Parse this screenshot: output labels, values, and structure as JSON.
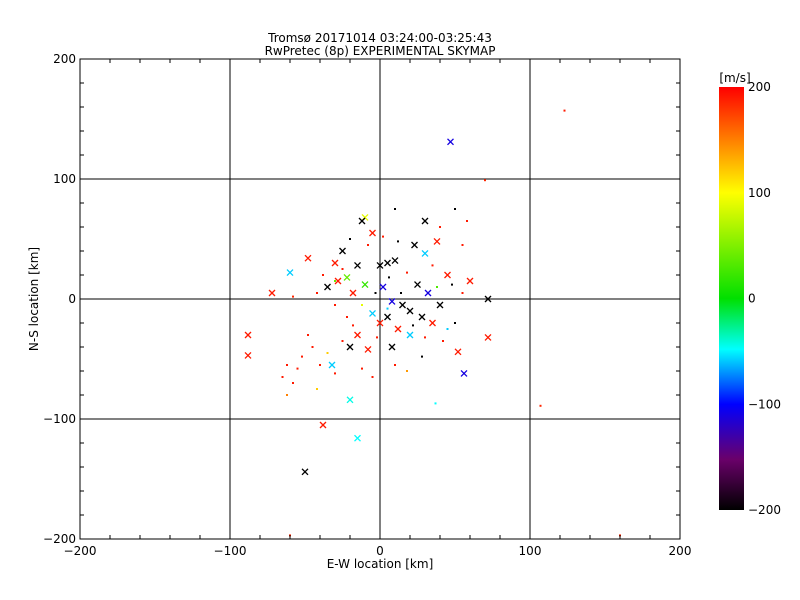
{
  "chart_data": {
    "type": "scatter",
    "title": "Tromsø 20171014 03:24:00-03:25:43",
    "subtitle": "RwPretec (8p) EXPERIMENTAL SKYMAP",
    "xlabel": "E-W location [km]",
    "ylabel": "N-S location [km]",
    "xlim": [
      -200,
      200
    ],
    "ylim": [
      -200,
      200
    ],
    "xticks": [
      "−200",
      "−100",
      "0",
      "100",
      "200"
    ],
    "yticks": [
      "−200",
      "−100",
      "0",
      "100",
      "200"
    ],
    "grid": true,
    "colorbar": {
      "label": "[m/s]",
      "range": [
        -200,
        200
      ],
      "ticks": [
        "200",
        "100",
        "0",
        "−100",
        "−200"
      ]
    },
    "points": [
      {
        "x": 123,
        "y": 157,
        "v": 190,
        "m": "dot"
      },
      {
        "x": 47,
        "y": 131,
        "v": -110,
        "m": "x"
      },
      {
        "x": 70,
        "y": 99,
        "v": 185,
        "m": "dot"
      },
      {
        "x": -88,
        "y": -30,
        "v": 190,
        "m": "x"
      },
      {
        "x": -88,
        "y": -47,
        "v": 190,
        "m": "x"
      },
      {
        "x": -72,
        "y": 5,
        "v": 190,
        "m": "x"
      },
      {
        "x": -60,
        "y": 22,
        "v": -60,
        "m": "x"
      },
      {
        "x": -48,
        "y": 34,
        "v": 190,
        "m": "x"
      },
      {
        "x": -58,
        "y": 2,
        "v": 185,
        "m": "dot"
      },
      {
        "x": -38,
        "y": -105,
        "v": 190,
        "m": "x"
      },
      {
        "x": -50,
        "y": -144,
        "v": -200,
        "m": "x"
      },
      {
        "x": -15,
        "y": -116,
        "v": -50,
        "m": "x"
      },
      {
        "x": -20,
        "y": -84,
        "v": -45,
        "m": "x"
      },
      {
        "x": -32,
        "y": -55,
        "v": -60,
        "m": "x"
      },
      {
        "x": -62,
        "y": -80,
        "v": 150,
        "m": "dot"
      },
      {
        "x": 37,
        "y": -87,
        "v": -50,
        "m": "dot"
      },
      {
        "x": 107,
        "y": -89,
        "v": 185,
        "m": "dot"
      },
      {
        "x": 160,
        "y": -197,
        "v": 185,
        "m": "dot"
      },
      {
        "x": -60,
        "y": -197,
        "v": 185,
        "m": "dot"
      },
      {
        "x": 56,
        "y": -62,
        "v": -110,
        "m": "x"
      },
      {
        "x": 52,
        "y": -44,
        "v": 190,
        "m": "x"
      },
      {
        "x": 72,
        "y": -32,
        "v": 190,
        "m": "x"
      },
      {
        "x": 72,
        "y": 0,
        "v": -200,
        "m": "x"
      },
      {
        "x": 60,
        "y": 15,
        "v": 190,
        "m": "x"
      },
      {
        "x": 50,
        "y": 75,
        "v": -200,
        "m": "dot"
      },
      {
        "x": 38,
        "y": 48,
        "v": 190,
        "m": "x"
      },
      {
        "x": 30,
        "y": 65,
        "v": -200,
        "m": "x"
      },
      {
        "x": 23,
        "y": 45,
        "v": -200,
        "m": "x"
      },
      {
        "x": 10,
        "y": 75,
        "v": -200,
        "m": "dot"
      },
      {
        "x": -10,
        "y": 68,
        "v": 90,
        "m": "x"
      },
      {
        "x": -12,
        "y": 65,
        "v": -200,
        "m": "x"
      },
      {
        "x": 30,
        "y": 38,
        "v": -60,
        "m": "x"
      },
      {
        "x": 45,
        "y": 20,
        "v": 190,
        "m": "x"
      },
      {
        "x": -25,
        "y": 40,
        "v": -200,
        "m": "x"
      },
      {
        "x": -30,
        "y": 30,
        "v": 190,
        "m": "x"
      },
      {
        "x": -5,
        "y": 55,
        "v": 190,
        "m": "x"
      },
      {
        "x": -20,
        "y": 50,
        "v": -200,
        "m": "dot"
      },
      {
        "x": 5,
        "y": 30,
        "v": -200,
        "m": "x"
      },
      {
        "x": 10,
        "y": 32,
        "v": -200,
        "m": "x"
      },
      {
        "x": 0,
        "y": 28,
        "v": -200,
        "m": "x"
      },
      {
        "x": -15,
        "y": 28,
        "v": -200,
        "m": "x"
      },
      {
        "x": -28,
        "y": 15,
        "v": 190,
        "m": "x"
      },
      {
        "x": -22,
        "y": 18,
        "v": 40,
        "m": "x"
      },
      {
        "x": -35,
        "y": 10,
        "v": -200,
        "m": "x"
      },
      {
        "x": -18,
        "y": 5,
        "v": 190,
        "m": "x"
      },
      {
        "x": -10,
        "y": 12,
        "v": 20,
        "m": "x"
      },
      {
        "x": 2,
        "y": 10,
        "v": -110,
        "m": "x"
      },
      {
        "x": 8,
        "y": -2,
        "v": -110,
        "m": "x"
      },
      {
        "x": 15,
        "y": -5,
        "v": -200,
        "m": "x"
      },
      {
        "x": 20,
        "y": -10,
        "v": -200,
        "m": "x"
      },
      {
        "x": 28,
        "y": -15,
        "v": -200,
        "m": "x"
      },
      {
        "x": 5,
        "y": -15,
        "v": -200,
        "m": "x"
      },
      {
        "x": -5,
        "y": -12,
        "v": -60,
        "m": "x"
      },
      {
        "x": 0,
        "y": -20,
        "v": 190,
        "m": "x"
      },
      {
        "x": 12,
        "y": -25,
        "v": 190,
        "m": "x"
      },
      {
        "x": -15,
        "y": -30,
        "v": 190,
        "m": "x"
      },
      {
        "x": -20,
        "y": -40,
        "v": -200,
        "m": "x"
      },
      {
        "x": -8,
        "y": -42,
        "v": 190,
        "m": "x"
      },
      {
        "x": 8,
        "y": -40,
        "v": -200,
        "m": "x"
      },
      {
        "x": 20,
        "y": -30,
        "v": -60,
        "m": "x"
      },
      {
        "x": 35,
        "y": -20,
        "v": 190,
        "m": "x"
      },
      {
        "x": 40,
        "y": -5,
        "v": -200,
        "m": "x"
      },
      {
        "x": 32,
        "y": 5,
        "v": -110,
        "m": "x"
      },
      {
        "x": 25,
        "y": 12,
        "v": -200,
        "m": "x"
      },
      {
        "x": -40,
        "y": -55,
        "v": 190,
        "m": "dot"
      },
      {
        "x": -48,
        "y": -30,
        "v": 190,
        "m": "dot"
      },
      {
        "x": -55,
        "y": -58,
        "v": 190,
        "m": "dot"
      },
      {
        "x": -62,
        "y": -55,
        "v": 190,
        "m": "dot"
      },
      {
        "x": -65,
        "y": -65,
        "v": 190,
        "m": "dot"
      },
      {
        "x": -58,
        "y": -70,
        "v": 190,
        "m": "dot"
      },
      {
        "x": -52,
        "y": -48,
        "v": 190,
        "m": "dot"
      },
      {
        "x": -45,
        "y": -40,
        "v": 190,
        "m": "dot"
      },
      {
        "x": -35,
        "y": -45,
        "v": 120,
        "m": "dot"
      },
      {
        "x": -30,
        "y": -62,
        "v": 190,
        "m": "dot"
      },
      {
        "x": -25,
        "y": -35,
        "v": 190,
        "m": "dot"
      },
      {
        "x": -12,
        "y": -58,
        "v": 190,
        "m": "dot"
      },
      {
        "x": -5,
        "y": -65,
        "v": 190,
        "m": "dot"
      },
      {
        "x": 10,
        "y": -55,
        "v": 190,
        "m": "dot"
      },
      {
        "x": 18,
        "y": -60,
        "v": 140,
        "m": "dot"
      },
      {
        "x": 28,
        "y": -48,
        "v": -200,
        "m": "dot"
      },
      {
        "x": 42,
        "y": -35,
        "v": 190,
        "m": "dot"
      },
      {
        "x": 50,
        "y": -20,
        "v": -200,
        "m": "dot"
      },
      {
        "x": 55,
        "y": 5,
        "v": 190,
        "m": "dot"
      },
      {
        "x": 48,
        "y": 12,
        "v": -200,
        "m": "dot"
      },
      {
        "x": 55,
        "y": 45,
        "v": 190,
        "m": "dot"
      },
      {
        "x": 58,
        "y": 65,
        "v": 190,
        "m": "dot"
      },
      {
        "x": 40,
        "y": 60,
        "v": 190,
        "m": "dot"
      },
      {
        "x": 35,
        "y": 28,
        "v": 190,
        "m": "dot"
      },
      {
        "x": 18,
        "y": 22,
        "v": 190,
        "m": "dot"
      },
      {
        "x": 12,
        "y": 48,
        "v": -200,
        "m": "dot"
      },
      {
        "x": 2,
        "y": 52,
        "v": 190,
        "m": "dot"
      },
      {
        "x": -8,
        "y": 45,
        "v": 190,
        "m": "dot"
      },
      {
        "x": -25,
        "y": 25,
        "v": 190,
        "m": "dot"
      },
      {
        "x": -38,
        "y": 20,
        "v": 190,
        "m": "dot"
      },
      {
        "x": -42,
        "y": 5,
        "v": 190,
        "m": "dot"
      },
      {
        "x": -30,
        "y": -5,
        "v": 190,
        "m": "dot"
      },
      {
        "x": -22,
        "y": -15,
        "v": 190,
        "m": "dot"
      },
      {
        "x": -12,
        "y": -5,
        "v": 90,
        "m": "dot"
      },
      {
        "x": -3,
        "y": 5,
        "v": -200,
        "m": "dot"
      },
      {
        "x": 6,
        "y": 18,
        "v": -200,
        "m": "dot"
      },
      {
        "x": 14,
        "y": 5,
        "v": -200,
        "m": "dot"
      },
      {
        "x": 22,
        "y": -22,
        "v": -200,
        "m": "dot"
      },
      {
        "x": 30,
        "y": -32,
        "v": 190,
        "m": "dot"
      },
      {
        "x": -2,
        "y": -32,
        "v": 190,
        "m": "dot"
      },
      {
        "x": -18,
        "y": -22,
        "v": 190,
        "m": "dot"
      },
      {
        "x": 5,
        "y": -8,
        "v": -60,
        "m": "dot"
      },
      {
        "x": 38,
        "y": 10,
        "v": 30,
        "m": "dot"
      },
      {
        "x": -30,
        "y": 15,
        "v": 40,
        "m": "dot"
      },
      {
        "x": -42,
        "y": -75,
        "v": 120,
        "m": "dot"
      },
      {
        "x": 45,
        "y": -25,
        "v": -60,
        "m": "dot"
      }
    ]
  }
}
